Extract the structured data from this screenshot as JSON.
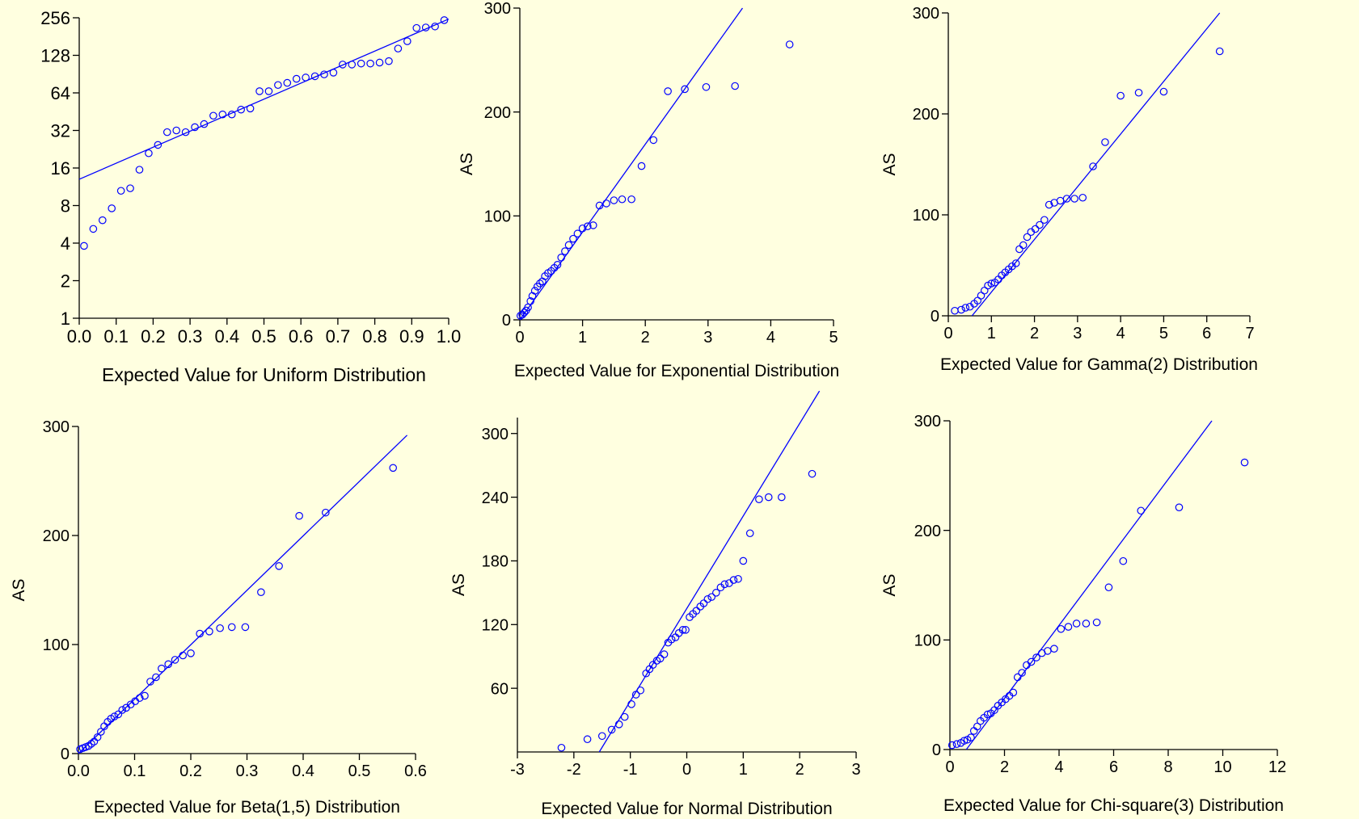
{
  "colors": {
    "background": "#ffffe0",
    "series": "#0000ff",
    "axis": "#000000"
  },
  "chart_data": [
    {
      "type": "scatter",
      "xlabel": "Expected Value for Uniform Distribution",
      "ylabel": "",
      "xlim": [
        0,
        1.0
      ],
      "ylim": [
        1,
        256
      ],
      "yscale": "log2",
      "xticks": [
        "0.0",
        "0.1",
        "0.2",
        "0.3",
        "0.4",
        "0.5",
        "0.6",
        "0.7",
        "0.8",
        "0.9",
        "1.0"
      ],
      "yticks": [
        "1",
        "2",
        "4",
        "8",
        "16",
        "32",
        "64",
        "128",
        "256"
      ],
      "points": {
        "x": [
          0.013,
          0.038,
          0.063,
          0.088,
          0.113,
          0.138,
          0.163,
          0.188,
          0.213,
          0.238,
          0.263,
          0.288,
          0.313,
          0.338,
          0.363,
          0.388,
          0.413,
          0.438,
          0.463,
          0.488,
          0.513,
          0.538,
          0.563,
          0.588,
          0.613,
          0.638,
          0.663,
          0.688,
          0.713,
          0.738,
          0.763,
          0.788,
          0.813,
          0.838,
          0.863,
          0.888,
          0.913,
          0.938,
          0.963,
          0.988
        ],
        "y": [
          3.8,
          5.2,
          6.1,
          7.6,
          10.5,
          11,
          15.5,
          21,
          24.5,
          31,
          32,
          31,
          34,
          36,
          42,
          43,
          43,
          47,
          48,
          66,
          66,
          74,
          77,
          83,
          85,
          87,
          90,
          93,
          108,
          108,
          110,
          110,
          112,
          115,
          145,
          166,
          212,
          214,
          218,
          245
        ]
      },
      "fit_line": {
        "x": [
          0,
          1.0
        ],
        "y": [
          13,
          250
        ]
      }
    },
    {
      "type": "scatter",
      "xlabel": "Expected Value for Exponential Distribution",
      "ylabel": "AS",
      "xlim": [
        0,
        5
      ],
      "ylim": [
        0,
        300
      ],
      "xticks": [
        "0",
        "1",
        "2",
        "3",
        "4",
        "5"
      ],
      "yticks": [
        "0",
        "100",
        "200",
        "300"
      ],
      "points": {
        "x": [
          0.01,
          0.04,
          0.07,
          0.1,
          0.13,
          0.17,
          0.2,
          0.24,
          0.28,
          0.32,
          0.36,
          0.4,
          0.45,
          0.5,
          0.55,
          0.6,
          0.66,
          0.72,
          0.78,
          0.85,
          0.92,
          1.0,
          1.08,
          1.17,
          1.27,
          1.38,
          1.5,
          1.63,
          1.78,
          1.94,
          2.13,
          2.36,
          2.63,
          2.97,
          3.43,
          4.3
        ],
        "y": [
          4,
          5,
          7,
          9,
          12,
          18,
          23,
          28,
          32,
          35,
          37,
          42,
          45,
          47,
          50,
          53,
          60,
          66,
          72,
          78,
          83,
          88,
          90,
          91,
          110,
          112,
          115,
          116,
          116,
          148,
          173,
          220,
          222,
          224,
          225,
          265
        ]
      },
      "fit_line": {
        "x": [
          0,
          3.55
        ],
        "y": [
          0,
          300
        ]
      }
    },
    {
      "type": "scatter",
      "xlabel": "Expected Value for Gamma(2) Distribution",
      "ylabel": "AS",
      "xlim": [
        0,
        7
      ],
      "ylim": [
        0,
        300
      ],
      "xticks": [
        "0",
        "1",
        "2",
        "3",
        "4",
        "5",
        "6",
        "7"
      ],
      "yticks": [
        "0",
        "100",
        "200",
        "300"
      ],
      "points": {
        "x": [
          0.15,
          0.3,
          0.4,
          0.5,
          0.6,
          0.68,
          0.76,
          0.84,
          0.92,
          1.0,
          1.08,
          1.16,
          1.24,
          1.32,
          1.4,
          1.48,
          1.57,
          1.65,
          1.74,
          1.83,
          1.92,
          2.02,
          2.12,
          2.23,
          2.34,
          2.46,
          2.6,
          2.75,
          2.93,
          3.12,
          3.36,
          3.64,
          4.0,
          4.42,
          5.0,
          6.3
        ],
        "y": [
          5,
          6,
          8,
          9,
          12,
          15,
          20,
          25,
          30,
          32,
          33,
          36,
          40,
          43,
          46,
          49,
          52,
          66,
          70,
          78,
          83,
          86,
          90,
          95,
          110,
          112,
          114,
          116,
          116,
          117,
          148,
          172,
          218,
          221,
          222,
          262
        ]
      },
      "fit_line": {
        "x": [
          0.55,
          6.3
        ],
        "y": [
          0,
          300
        ]
      }
    },
    {
      "type": "scatter",
      "xlabel": "Expected Value for Beta(1,5) Distribution",
      "ylabel": "AS",
      "xlim": [
        0,
        0.6
      ],
      "ylim": [
        0,
        300
      ],
      "xticks": [
        "0.0",
        "0.1",
        "0.2",
        "0.3",
        "0.4",
        "0.5",
        "0.6"
      ],
      "yticks": [
        "0",
        "100",
        "200",
        "300"
      ],
      "points": {
        "x": [
          0.003,
          0.008,
          0.013,
          0.018,
          0.023,
          0.028,
          0.034,
          0.04,
          0.046,
          0.052,
          0.058,
          0.064,
          0.071,
          0.078,
          0.085,
          0.093,
          0.101,
          0.109,
          0.118,
          0.128,
          0.138,
          0.148,
          0.16,
          0.172,
          0.186,
          0.2,
          0.216,
          0.233,
          0.252,
          0.273,
          0.297,
          0.325,
          0.357,
          0.393,
          0.44,
          0.56
        ],
        "y": [
          4,
          5,
          6,
          7,
          9,
          11,
          15,
          20,
          25,
          29,
          32,
          34,
          36,
          40,
          42,
          45,
          48,
          51,
          53,
          66,
          70,
          78,
          82,
          86,
          90,
          92,
          110,
          112,
          115,
          116,
          116,
          148,
          172,
          218,
          221,
          262
        ]
      },
      "fit_line": {
        "x": [
          0,
          0.585
        ],
        "y": [
          0,
          292
        ]
      }
    },
    {
      "type": "scatter",
      "xlabel": "Expected Value for Normal Distribution",
      "ylabel": "AS",
      "xlim": [
        -3,
        3
      ],
      "ylim": [
        0,
        315
      ],
      "xticks": [
        "-3",
        "-2",
        "-1",
        "0",
        "1",
        "2",
        "3"
      ],
      "yticks": [
        "60",
        "120",
        "180",
        "240",
        "300"
      ],
      "points": {
        "x": [
          -2.22,
          -1.76,
          -1.5,
          -1.33,
          -1.2,
          -1.1,
          -0.98,
          -0.9,
          -0.82,
          -0.72,
          -0.66,
          -0.6,
          -0.53,
          -0.47,
          -0.4,
          -0.33,
          -0.27,
          -0.2,
          -0.14,
          -0.07,
          -0.02,
          0.05,
          0.11,
          0.17,
          0.24,
          0.3,
          0.37,
          0.44,
          0.52,
          0.6,
          0.67,
          0.75,
          0.83,
          0.91,
          1.0,
          1.12,
          1.28,
          1.45,
          1.68,
          2.22
        ],
        "y": [
          4,
          12,
          15,
          21,
          26,
          33,
          45,
          54,
          58,
          74,
          78,
          82,
          86,
          88,
          92,
          103,
          106,
          108,
          112,
          115,
          115,
          127,
          130,
          133,
          137,
          140,
          144,
          146,
          150,
          155,
          158,
          159,
          162,
          163,
          180,
          206,
          238,
          240,
          240,
          262
        ]
      },
      "fit_line": {
        "x": [
          -1.55,
          2.35
        ],
        "y": [
          0,
          340
        ]
      }
    },
    {
      "type": "scatter",
      "xlabel": "Expected Value for Chi-square(3) Distribution",
      "ylabel": "AS",
      "xlim": [
        0,
        12
      ],
      "ylim": [
        0,
        300
      ],
      "xticks": [
        "0",
        "2",
        "4",
        "6",
        "8",
        "10",
        "12"
      ],
      "yticks": [
        "0",
        "100",
        "200",
        "300"
      ],
      "points": {
        "x": [
          0.08,
          0.25,
          0.4,
          0.52,
          0.64,
          0.77,
          0.88,
          1.0,
          1.12,
          1.25,
          1.38,
          1.5,
          1.63,
          1.76,
          1.9,
          2.04,
          2.18,
          2.32,
          2.48,
          2.64,
          2.81,
          2.98,
          3.17,
          3.37,
          3.58,
          3.82,
          4.07,
          4.34,
          4.64,
          4.99,
          5.38,
          5.82,
          6.35,
          7.0,
          8.4,
          10.8
        ],
        "y": [
          4,
          5,
          6,
          8,
          9,
          11,
          17,
          21,
          26,
          29,
          32,
          33,
          36,
          40,
          43,
          46,
          49,
          52,
          66,
          70,
          77,
          80,
          84,
          88,
          90,
          92,
          110,
          112,
          115,
          115,
          116,
          148,
          172,
          218,
          221,
          262
        ]
      },
      "fit_line": {
        "x": [
          0.6,
          9.6
        ],
        "y": [
          0,
          300
        ]
      }
    }
  ]
}
